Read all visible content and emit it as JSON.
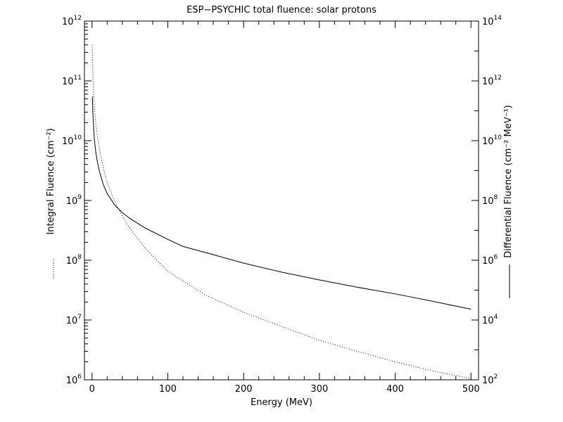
{
  "chart_data": {
    "type": "line",
    "title": "ESP−PSYCHIC total fluence: solar protons",
    "xlabel": "Energy (MeV)",
    "ylabel_left": "Integral Fluence (cm⁻²)",
    "ylabel_right": "Differential Fluence (cm⁻² MeV⁻¹)",
    "x_scale": "linear",
    "y_scale": "log",
    "xlim": [
      -10,
      510
    ],
    "ylim_left": [
      1000000.0,
      1000000000000.0
    ],
    "ylim_right": [
      100.0,
      100000000000000.0
    ],
    "x_ticks": [
      "0",
      "100",
      "200",
      "300",
      "400",
      "500"
    ],
    "y_left_ticks": [
      {
        "base": "10",
        "exp": "6"
      },
      {
        "base": "10",
        "exp": "7"
      },
      {
        "base": "10",
        "exp": "8"
      },
      {
        "base": "10",
        "exp": "9"
      },
      {
        "base": "10",
        "exp": "10"
      },
      {
        "base": "10",
        "exp": "11"
      },
      {
        "base": "10",
        "exp": "12"
      }
    ],
    "y_right_ticks": [
      {
        "base": "10",
        "exp": "2"
      },
      {
        "base": "10",
        "exp": "4"
      },
      {
        "base": "10",
        "exp": "6"
      },
      {
        "base": "10",
        "exp": "8"
      },
      {
        "base": "10",
        "exp": "10"
      },
      {
        "base": "10",
        "exp": "12"
      },
      {
        "base": "10",
        "exp": "14"
      }
    ],
    "grid": false,
    "series": [
      {
        "axis": "left",
        "line_style": "dotted",
        "x": [
          0.1,
          1,
          2,
          3,
          5,
          7,
          10,
          15,
          20,
          30,
          40,
          50,
          70,
          100,
          150,
          200,
          250,
          300,
          350,
          400,
          450,
          500
        ],
        "y": [
          400000000000.0,
          150000000000.0,
          65000000000.0,
          38000000000.0,
          19000000000.0,
          12500000000.0,
          7000000000.0,
          3400000000.0,
          2000000000.0,
          950000000.0,
          550000000.0,
          340000000.0,
          160000000.0,
          65000000.0,
          26000000.0,
          13500000.0,
          7800000.0,
          4600000.0,
          3000000.0,
          2000000.0,
          1400000.0,
          1050000.0
        ]
      },
      {
        "axis": "right",
        "line_style": "solid",
        "x": [
          0.5,
          1,
          2,
          3,
          5,
          7,
          10,
          15,
          20,
          30,
          40,
          50,
          70,
          100,
          120,
          150,
          200,
          250,
          300,
          350,
          400,
          450,
          500
        ],
        "y": [
          300000000000.0,
          100000000000.0,
          30000000000.0,
          12000000000.0,
          4000000000.0,
          2000000000.0,
          900000000.0,
          330000000.0,
          170000000.0,
          70000000.0,
          39000000.0,
          25000000.0,
          12000000.0,
          5000000.0,
          2900000.0,
          1800000.0,
          800000.0,
          400000.0,
          220000.0,
          125000.0,
          75000.0,
          42000.0,
          23000.0
        ]
      }
    ]
  }
}
